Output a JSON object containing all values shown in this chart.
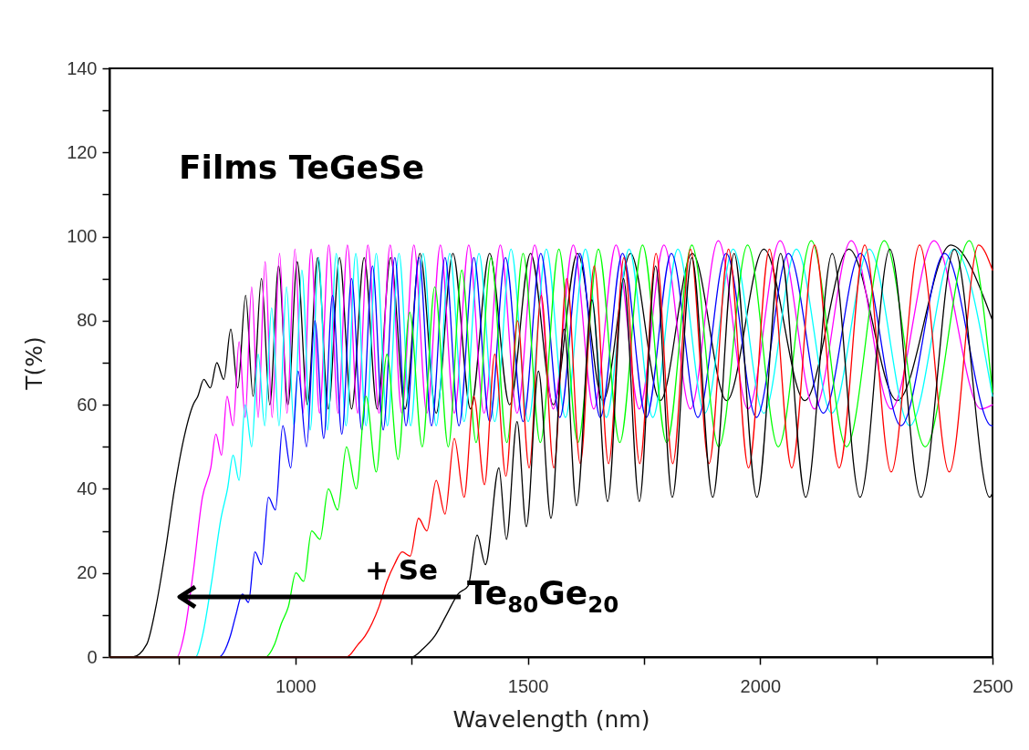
{
  "chart_data": {
    "type": "line",
    "title": "Films TeGeSe",
    "xlabel": "Wavelength (nm)",
    "ylabel": "T(%)",
    "xlim": [
      600,
      2500
    ],
    "xticks": [
      {
        "value": 750,
        "label": null
      },
      1000,
      {
        "value": 1250,
        "label": null
      },
      1500,
      {
        "value": 1750,
        "label": null
      },
      2000,
      {
        "value": 2250,
        "label": null
      },
      2500
    ],
    "ylim": [
      0,
      140
    ],
    "yticks": [
      0,
      {
        "value": 10,
        "label": null
      },
      20,
      {
        "value": 30,
        "label": null
      },
      40,
      {
        "value": 50,
        "label": null
      },
      60,
      {
        "value": 70,
        "label": null
      },
      80,
      {
        "value": 90,
        "label": null
      },
      100,
      {
        "value": 110,
        "label": null
      },
      120,
      {
        "value": 130,
        "label": null
      },
      140
    ],
    "annotations": [
      "+ Se"
    ],
    "series": [
      {
        "color": "#000000",
        "x": [
          600,
          650,
          680,
          700,
          720,
          740,
          760,
          780,
          790,
          803,
          817,
          831,
          846,
          861,
          876,
          893,
          909,
          927,
          945,
          964,
          984,
          1004,
          1026,
          1048,
          1071,
          1095,
          1121,
          1148,
          1176,
          1205,
          1236,
          1268,
          1303,
          1339,
          1377,
          1418,
          1461,
          1506,
          1555,
          1607,
          1662,
          1721,
          1785,
          1854,
          1928,
          2008,
          2096,
          2191,
          2295,
          2410,
          2500
        ],
        "values": [
          0,
          0,
          3,
          12,
          25,
          40,
          52,
          60,
          62,
          66,
          64,
          70,
          66,
          78,
          64,
          86,
          62,
          90,
          60,
          93,
          60,
          94,
          60,
          95,
          59,
          95,
          59,
          95,
          59,
          95,
          59,
          96,
          58,
          96,
          59,
          96,
          60,
          96,
          60,
          96,
          61,
          96,
          61,
          96,
          61,
          97,
          61,
          97,
          61,
          98,
          80
        ]
      },
      {
        "color": "#ff00ff",
        "x": [
          600,
          745,
          760,
          780,
          800,
          818,
          829,
          841,
          853,
          866,
          879,
          892,
          906,
          920,
          935,
          950,
          966,
          982,
          999,
          1016,
          1034,
          1052,
          1072,
          1092,
          1112,
          1134,
          1156,
          1180,
          1204,
          1229,
          1255,
          1283,
          1312,
          1342,
          1373,
          1406,
          1441,
          1477,
          1515,
          1555,
          1598,
          1642,
          1690,
          1740,
          1793,
          1850,
          1910,
          1974,
          2043,
          2117,
          2196,
          2282,
          2374,
          2475,
          2500
        ],
        "values": [
          0,
          0,
          5,
          20,
          38,
          45,
          53,
          48,
          62,
          55,
          75,
          57,
          88,
          57,
          94,
          57,
          96,
          58,
          97,
          58,
          97,
          58,
          98,
          58,
          98,
          58,
          98,
          58,
          98,
          58,
          98,
          58,
          98,
          58,
          98,
          58,
          98,
          58,
          98,
          59,
          98,
          59,
          98,
          59,
          98,
          59,
          99,
          59,
          99,
          59,
          99,
          59,
          99,
          59,
          60
        ]
      },
      {
        "color": "#00ffff",
        "x": [
          600,
          785,
          800,
          820,
          840,
          854,
          866,
          879,
          892,
          906,
          920,
          934,
          949,
          965,
          981,
          997,
          1014,
          1032,
          1050,
          1069,
          1088,
          1109,
          1130,
          1152,
          1174,
          1198,
          1223,
          1248,
          1275,
          1303,
          1332,
          1363,
          1395,
          1429,
          1464,
          1501,
          1540,
          1581,
          1624,
          1669,
          1718,
          1769,
          1823,
          1881,
          1942,
          2008,
          2078,
          2154,
          2235,
          2322,
          2417,
          2500
        ],
        "values": [
          0,
          0,
          5,
          18,
          33,
          40,
          48,
          42,
          60,
          50,
          72,
          55,
          83,
          55,
          88,
          55,
          92,
          54,
          95,
          54,
          96,
          55,
          96,
          55,
          96,
          55,
          96,
          55,
          96,
          55,
          96,
          56,
          96,
          56,
          97,
          56,
          97,
          57,
          97,
          57,
          97,
          57,
          97,
          58,
          97,
          58,
          97,
          58,
          97,
          55,
          97,
          62
        ]
      },
      {
        "color": "#0000ff",
        "x": [
          600,
          835,
          860,
          872,
          886,
          899,
          913,
          927,
          942,
          957,
          973,
          990,
          1006,
          1024,
          1042,
          1061,
          1080,
          1100,
          1121,
          1143,
          1166,
          1189,
          1214,
          1238,
          1266,
          1293,
          1322,
          1352,
          1384,
          1418,
          1452,
          1490,
          1528,
          1569,
          1612,
          1656,
          1704,
          1755,
          1809,
          1866,
          1927,
          1992,
          2061,
          2136,
          2216,
          2303,
          2397,
          2498,
          2500
        ],
        "values": [
          0,
          0,
          5,
          10,
          15,
          13,
          25,
          22,
          38,
          35,
          55,
          45,
          68,
          50,
          80,
          52,
          86,
          53,
          90,
          54,
          93,
          54,
          95,
          55,
          95,
          55,
          95,
          55,
          95,
          56,
          95,
          56,
          96,
          57,
          96,
          57,
          96,
          57,
          96,
          57,
          96,
          57,
          96,
          58,
          96,
          55,
          96,
          55,
          55
        ]
      },
      {
        "color": "#00ff00",
        "x": [
          600,
          935,
          955,
          970,
          985,
          1001,
          1018,
          1035,
          1053,
          1071,
          1091,
          1110,
          1131,
          1152,
          1174,
          1197,
          1221,
          1246,
          1273,
          1300,
          1329,
          1358,
          1389,
          1421,
          1455,
          1490,
          1527,
          1567,
          1608,
          1652,
          1698,
          1747,
          1799,
          1853,
          1911,
          1973,
          2039,
          2110,
          2186,
          2267,
          2355,
          2450,
          2500
        ],
        "values": [
          0,
          0,
          3,
          8,
          12,
          20,
          18,
          30,
          28,
          40,
          35,
          50,
          40,
          62,
          44,
          72,
          47,
          82,
          50,
          88,
          50,
          92,
          51,
          95,
          51,
          96,
          51,
          97,
          51,
          97,
          51,
          98,
          51,
          98,
          50,
          98,
          50,
          99,
          50,
          99,
          50,
          99,
          63
        ]
      },
      {
        "color": "#ff0000",
        "x": [
          600,
          1110,
          1135,
          1150,
          1165,
          1180,
          1197,
          1213,
          1230,
          1247,
          1265,
          1283,
          1303,
          1322,
          1342,
          1363,
          1384,
          1407,
          1429,
          1453,
          1478,
          1503,
          1529,
          1556,
          1584,
          1613,
          1643,
          1674,
          1707,
          1741,
          1776,
          1812,
          1850,
          1890,
          1932,
          1975,
          2020,
          2068,
          2117,
          2170,
          2225,
          2282,
          2343,
          2407,
          2470,
          2500
        ],
        "values": [
          0,
          0,
          3,
          5,
          8,
          12,
          18,
          22,
          25,
          24,
          33,
          30,
          42,
          34,
          52,
          38,
          62,
          41,
          72,
          43,
          80,
          45,
          86,
          45,
          90,
          46,
          93,
          46,
          95,
          46,
          96,
          46,
          97,
          46,
          97,
          45,
          97,
          45,
          98,
          45,
          98,
          44,
          98,
          44,
          98,
          92
        ]
      },
      {
        "name": "Te$_{80}$Ge$_{20}$",
        "color": "#000000",
        "x": [
          600,
          1250,
          1275,
          1300,
          1325,
          1350,
          1372,
          1391,
          1409,
          1438,
          1454,
          1477,
          1497,
          1523,
          1550,
          1578,
          1605,
          1638,
          1672,
          1706,
          1740,
          1775,
          1811,
          1853,
          1898,
          1944,
          1993,
          2044,
          2098,
          2155,
          2215,
          2279,
          2346,
          2418,
          2494,
          2500
        ],
        "values": [
          0,
          0,
          2,
          5,
          10,
          15,
          17,
          29,
          22,
          45,
          28,
          56,
          31,
          68,
          33,
          78,
          36,
          85,
          37,
          90,
          37,
          93,
          38,
          95,
          38,
          96,
          38,
          96,
          38,
          96,
          38,
          97,
          38,
          97,
          38,
          39
        ]
      }
    ]
  }
}
